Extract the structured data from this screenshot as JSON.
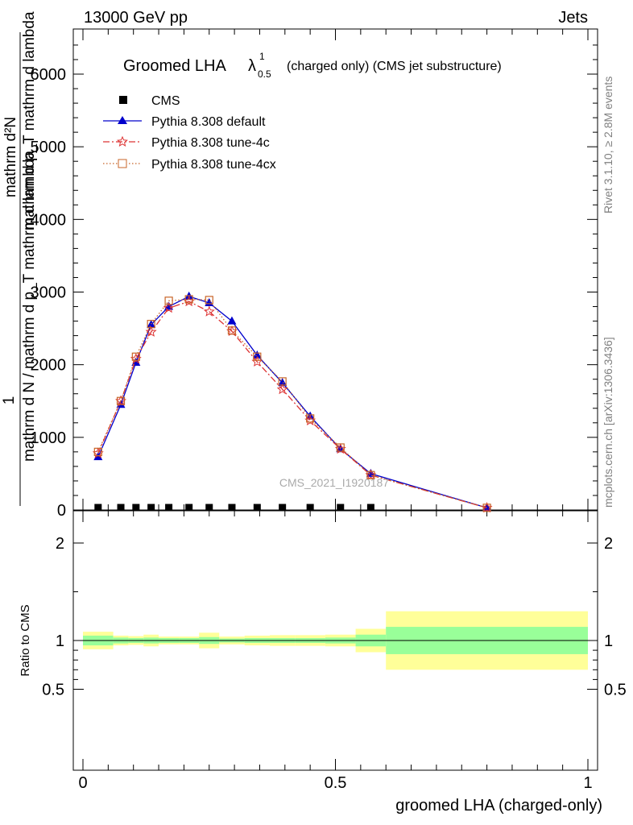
{
  "header": {
    "left": "13000 GeV pp",
    "right": "Jets"
  },
  "side_text": {
    "rivet": "Rivet 3.1.10, ≥ 2.8M events",
    "mcplots": "mcplots.cern.ch [arXiv:1306.3436]"
  },
  "watermark": "CMS_2021_I1920187",
  "plot_title": {
    "prefix": "Groomed LHA ",
    "lambda": "λ",
    "sup": "1",
    "sub": "0.5",
    "suffix": "(charged only) (CMS jet substructure)"
  },
  "ylabel_main": {
    "numerator": "1",
    "denominator": "mathrm d N / mathrm d p_T mathrm d lambda",
    "side": "mathrm d²N",
    "side2": "mathrm d p_T mathrm d lambda",
    "sub_T": "T"
  },
  "ylabel_ratio": "Ratio to CMS",
  "xlabel": "groomed LHA (charged-only)",
  "colors": {
    "cms": "#000000",
    "default": "#0000cc",
    "tune4c": "#dd3333",
    "tune4cx": "#c86428",
    "band_inner": "#99ff99",
    "band_outer": "#ffff99"
  },
  "chart_data": [
    {
      "type": "line",
      "panel": "main",
      "xlim": [
        -0.03,
        1.03
      ],
      "ylim": [
        0,
        6600
      ],
      "yticks": [
        0,
        1000,
        2000,
        3000,
        4000,
        5000,
        6000
      ],
      "ytick_labels": [
        "0",
        "1000",
        "2000",
        "3000",
        "4000",
        "5000",
        "6000"
      ],
      "legend_position": "top-left",
      "series": [
        {
          "name": "CMS",
          "marker": "square",
          "x": [
            0.03,
            0.075,
            0.105,
            0.135,
            0.17,
            0.21,
            0.25,
            0.295,
            0.345,
            0.395,
            0.45,
            0.51,
            0.57
          ],
          "y": [
            0,
            0,
            0,
            0,
            0,
            0,
            0,
            0,
            0,
            0,
            0,
            0,
            0
          ]
        },
        {
          "name": "Pythia 8.308 default",
          "marker": "triangle",
          "style": "solid",
          "x": [
            0.03,
            0.075,
            0.105,
            0.135,
            0.17,
            0.21,
            0.25,
            0.295,
            0.345,
            0.395,
            0.45,
            0.51,
            0.57,
            0.8
          ],
          "y": [
            730,
            1450,
            2030,
            2550,
            2800,
            2940,
            2850,
            2600,
            2130,
            1750,
            1290,
            840,
            500,
            30
          ]
        },
        {
          "name": "Pythia 8.308 tune-4c",
          "marker": "star",
          "style": "dash-dot",
          "x": [
            0.03,
            0.075,
            0.105,
            0.135,
            0.17,
            0.21,
            0.25,
            0.295,
            0.345,
            0.395,
            0.45,
            0.51,
            0.57,
            0.8
          ],
          "y": [
            780,
            1500,
            2080,
            2450,
            2780,
            2870,
            2730,
            2460,
            2040,
            1660,
            1230,
            840,
            480,
            30
          ]
        },
        {
          "name": "Pythia 8.308 tune-4cx",
          "marker": "open-square",
          "style": "dotted",
          "x": [
            0.03,
            0.075,
            0.105,
            0.135,
            0.17,
            0.21,
            0.25,
            0.295,
            0.345,
            0.395,
            0.45,
            0.51,
            0.57,
            0.8
          ],
          "y": [
            800,
            1500,
            2110,
            2560,
            2880,
            2900,
            2890,
            2470,
            2110,
            1770,
            1260,
            860,
            480,
            30
          ]
        }
      ]
    },
    {
      "type": "area",
      "panel": "ratio",
      "xlim": [
        -0.03,
        1.03
      ],
      "ylim": [
        0.35,
        2.35
      ],
      "yticks": [
        0.5,
        1,
        2
      ],
      "ytick_labels": [
        "0.5",
        "1",
        "2"
      ],
      "xticks": [
        0,
        0.5,
        1
      ],
      "xtick_labels": [
        "0",
        "0.5",
        "1"
      ],
      "bins": [
        {
          "lo": 0.0,
          "hi": 0.06,
          "inner": [
            0.95,
            1.05
          ],
          "outer": [
            0.91,
            1.09
          ]
        },
        {
          "lo": 0.06,
          "hi": 0.09,
          "inner": [
            0.97,
            1.03
          ],
          "outer": [
            0.95,
            1.05
          ]
        },
        {
          "lo": 0.09,
          "hi": 0.12,
          "inner": [
            0.975,
            1.025
          ],
          "outer": [
            0.955,
            1.045
          ]
        },
        {
          "lo": 0.12,
          "hi": 0.15,
          "inner": [
            0.97,
            1.03
          ],
          "outer": [
            0.94,
            1.06
          ]
        },
        {
          "lo": 0.15,
          "hi": 0.19,
          "inner": [
            0.975,
            1.025
          ],
          "outer": [
            0.96,
            1.04
          ]
        },
        {
          "lo": 0.19,
          "hi": 0.23,
          "inner": [
            0.975,
            1.025
          ],
          "outer": [
            0.96,
            1.04
          ]
        },
        {
          "lo": 0.23,
          "hi": 0.27,
          "inner": [
            0.965,
            1.035
          ],
          "outer": [
            0.92,
            1.08
          ]
        },
        {
          "lo": 0.27,
          "hi": 0.32,
          "inner": [
            0.98,
            1.02
          ],
          "outer": [
            0.96,
            1.04
          ]
        },
        {
          "lo": 0.32,
          "hi": 0.37,
          "inner": [
            0.975,
            1.025
          ],
          "outer": [
            0.95,
            1.05
          ]
        },
        {
          "lo": 0.37,
          "hi": 0.42,
          "inner": [
            0.975,
            1.025
          ],
          "outer": [
            0.945,
            1.055
          ]
        },
        {
          "lo": 0.42,
          "hi": 0.48,
          "inner": [
            0.975,
            1.025
          ],
          "outer": [
            0.945,
            1.055
          ]
        },
        {
          "lo": 0.48,
          "hi": 0.54,
          "inner": [
            0.97,
            1.03
          ],
          "outer": [
            0.94,
            1.06
          ]
        },
        {
          "lo": 0.54,
          "hi": 0.6,
          "inner": [
            0.94,
            1.06
          ],
          "outer": [
            0.88,
            1.12
          ]
        },
        {
          "lo": 0.6,
          "hi": 1.0,
          "inner": [
            0.86,
            1.14
          ],
          "outer": [
            0.7,
            1.3
          ]
        }
      ],
      "reference_line": 1
    }
  ]
}
